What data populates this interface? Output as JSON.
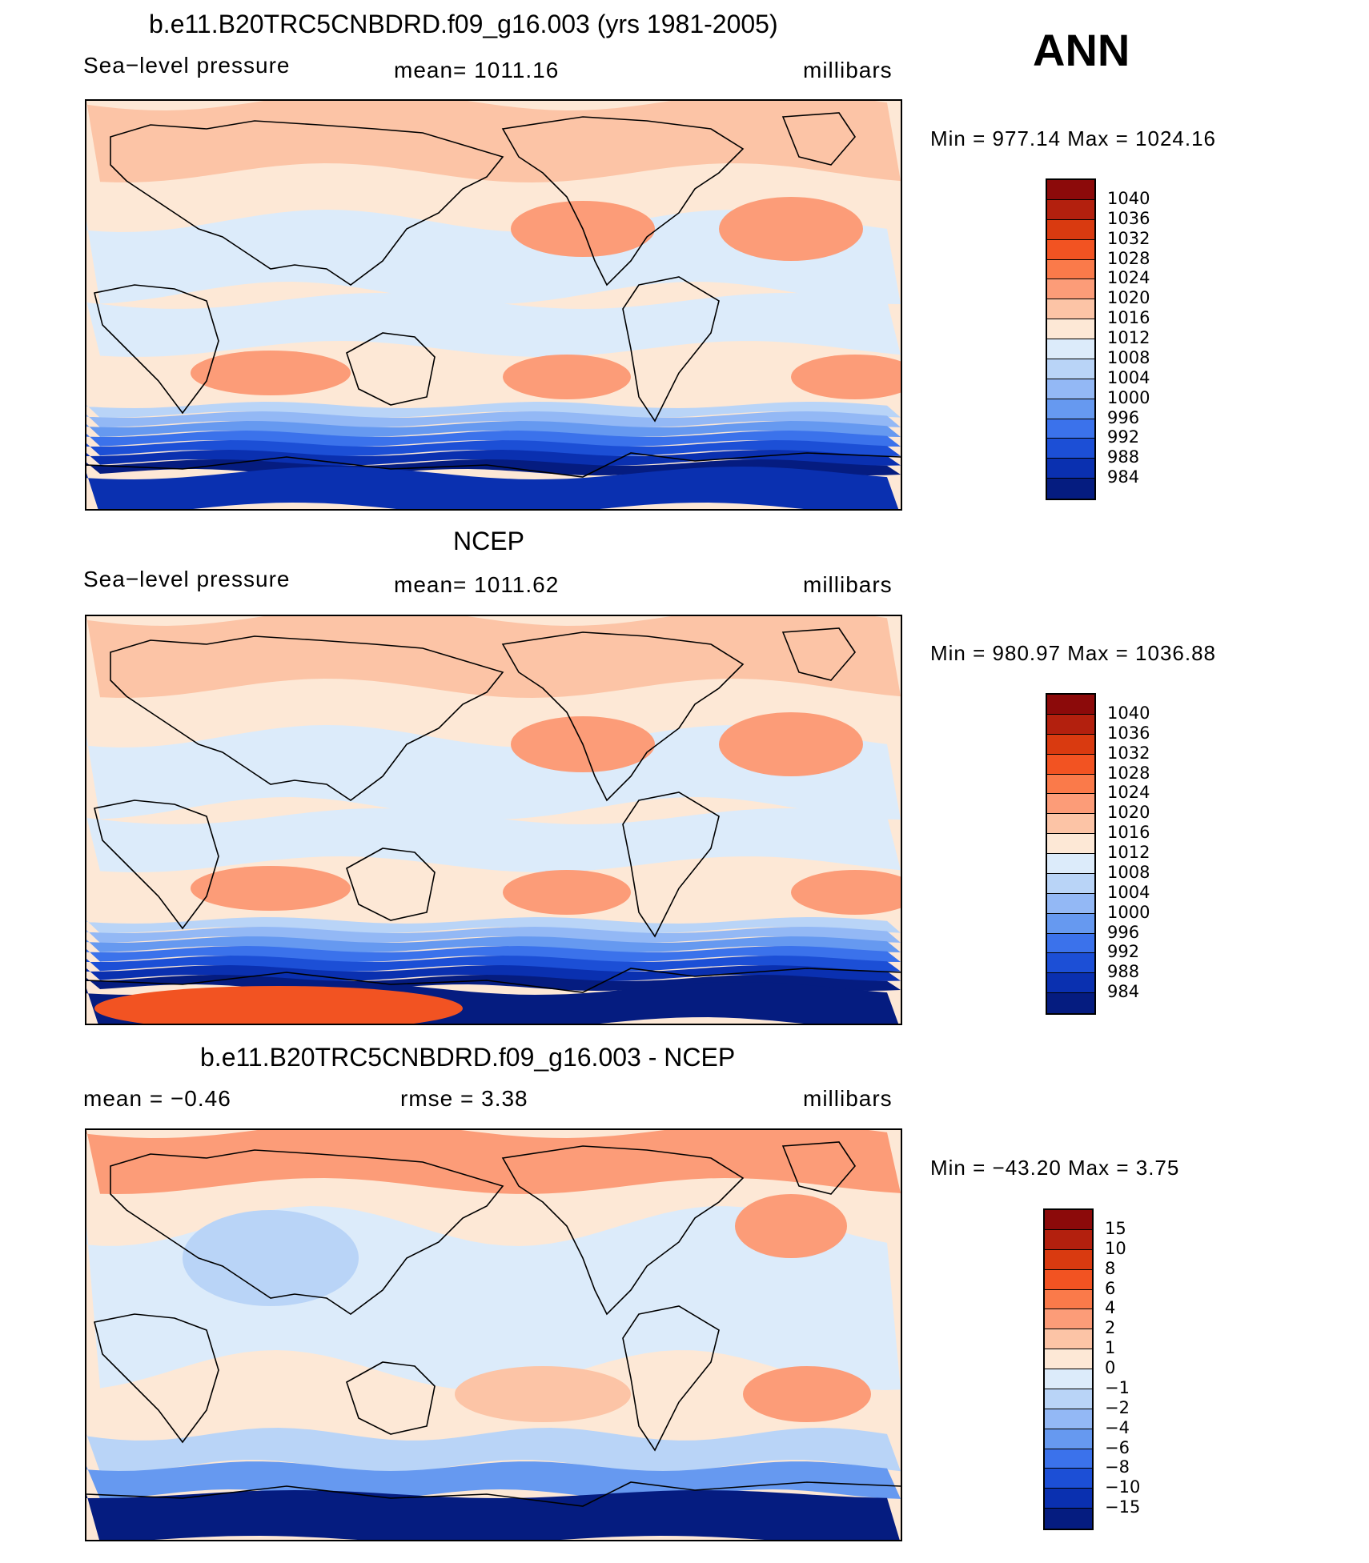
{
  "panels": [
    {
      "title": "b.e11.B20TRC5CNBDRD.f09_g16.003 (yrs 1981-2005)",
      "left_label": "Sea−level pressure",
      "center_label": "mean=  1011.16",
      "right_label": "millibars",
      "minmax": "Min  =  977.14  Max  =  1024.16",
      "scale": "abs",
      "variant": "model"
    },
    {
      "title": "NCEP",
      "left_label": "Sea−level pressure",
      "center_label": "mean=  1011.62",
      "right_label": "millibars",
      "minmax": "Min  =  980.97  Max  =  1036.88",
      "scale": "abs",
      "variant": "obs"
    },
    {
      "title": "b.e11.B20TRC5CNBDRD.f09_g16.003 - NCEP",
      "left_label": "mean  =     −0.46",
      "center_label": "rmse  =      3.38",
      "right_label": "millibars",
      "minmax": "Min  =  −43.20  Max  =       3.75",
      "scale": "diff",
      "variant": "diff"
    }
  ],
  "season": "ANN",
  "colorbars": {
    "abs": {
      "labels": [
        "1040",
        "1036",
        "1032",
        "1028",
        "1024",
        "1020",
        "1016",
        "1012",
        "1008",
        "1004",
        "1000",
        "996",
        "992",
        "988",
        "984"
      ],
      "colors": [
        "#8c0a0a",
        "#b3200e",
        "#d93a10",
        "#f25322",
        "#fa7a4a",
        "#fc9c78",
        "#fcc4a6",
        "#fde8d6",
        "#dcebfa",
        "#b9d4f7",
        "#93b8f5",
        "#6699f0",
        "#3b72eb",
        "#1c4fd6",
        "#0a30b0",
        "#051c80"
      ]
    },
    "diff": {
      "labels": [
        "15",
        "10",
        "8",
        "6",
        "4",
        "2",
        "1",
        "0",
        "−1",
        "−2",
        "−4",
        "−6",
        "−8",
        "−10",
        "−15"
      ],
      "colors": [
        "#8c0a0a",
        "#b3200e",
        "#d93a10",
        "#f25322",
        "#fa7a4a",
        "#fc9c78",
        "#fcc4a6",
        "#fde8d6",
        "#dcebfa",
        "#b9d4f7",
        "#93b8f5",
        "#6699f0",
        "#3b72eb",
        "#1c4fd6",
        "#0a30b0",
        "#051c80"
      ]
    }
  }
}
